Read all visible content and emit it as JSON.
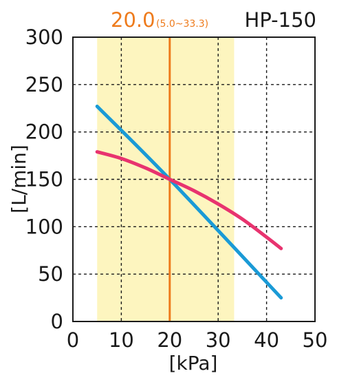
{
  "chart_data": {
    "type": "line",
    "title": "HP-150",
    "xlabel": "[kPa]",
    "ylabel": "[L/min]",
    "xlim": [
      0,
      50
    ],
    "ylim": [
      0,
      300
    ],
    "xticks": [
      "0",
      "10",
      "20",
      "30",
      "40",
      "50"
    ],
    "yticks": [
      "0",
      "50",
      "100",
      "150",
      "200",
      "250",
      "300"
    ],
    "grid": true,
    "rated_pressure": {
      "value": 20.0,
      "label": "20.0",
      "range": [
        5.0,
        33.3
      ],
      "range_label": "(5.0~33.3)",
      "color": "#ee7b1c",
      "band_color": "#fdf5bf"
    },
    "series": [
      {
        "color": "#1a9ad6",
        "x": [
          5,
          20,
          43
        ],
        "y": [
          227,
          150,
          25
        ]
      },
      {
        "color": "#e8336f",
        "x": [
          5,
          10,
          15,
          20,
          25,
          30,
          35,
          40,
          43
        ],
        "y": [
          179,
          172,
          162,
          150,
          138,
          124,
          108,
          89,
          77
        ]
      }
    ]
  }
}
